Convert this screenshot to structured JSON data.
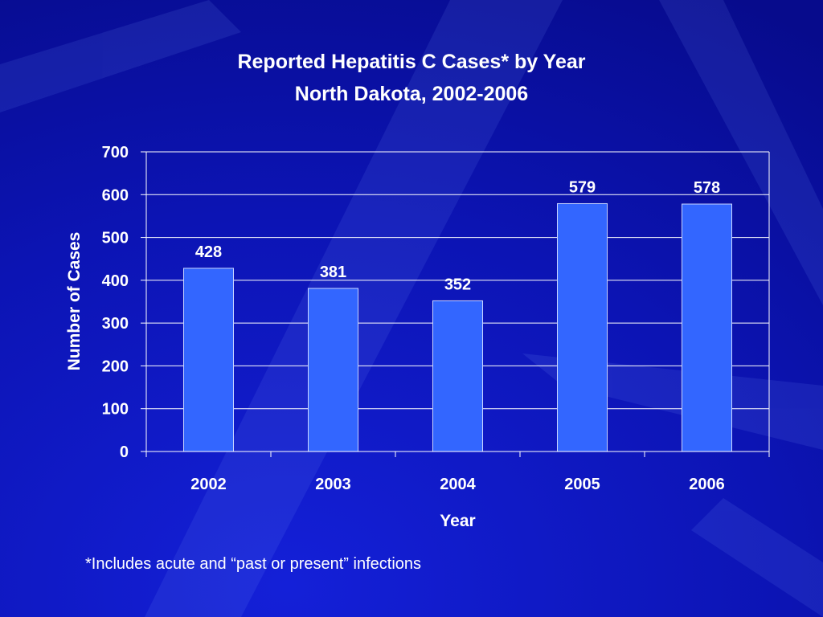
{
  "slide": {
    "footnote": "*Includes acute and “past or present” infections"
  },
  "colors": {
    "background": "#0a0fa8",
    "bar_fill": "#3366ff",
    "bar_stroke": "#c8d4ff",
    "text": "#ffffff",
    "gridline": "#ffffff"
  },
  "chart_data": {
    "type": "bar",
    "title": "Reported Hepatitis C Cases* by Year",
    "subtitle": "North Dakota, 2002-2006",
    "xlabel": "Year",
    "ylabel": "Number of Cases",
    "categories": [
      "2002",
      "2003",
      "2004",
      "2005",
      "2006"
    ],
    "values": [
      428,
      381,
      352,
      579,
      578
    ],
    "data_labels": [
      "428",
      "381",
      "352",
      "579",
      "578"
    ],
    "ylim": [
      0,
      700
    ],
    "yticks": [
      0,
      100,
      200,
      300,
      400,
      500,
      600,
      700
    ],
    "grid": true,
    "legend": "none"
  }
}
